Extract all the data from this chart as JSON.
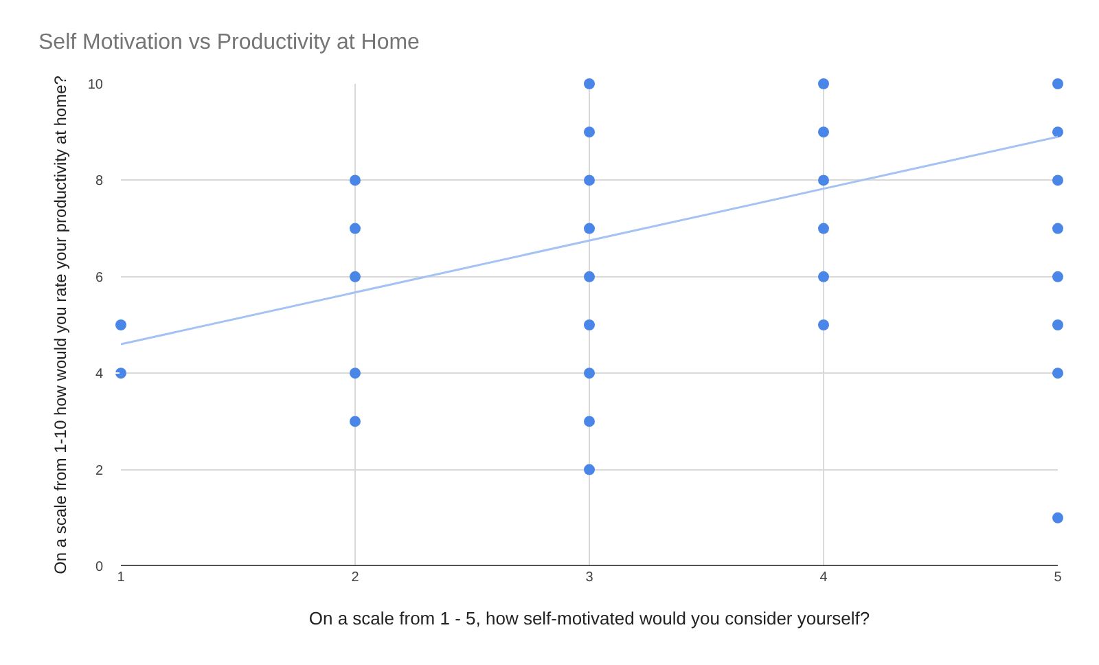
{
  "chart_data": {
    "type": "scatter",
    "title": "Self Motivation vs Productivity at Home",
    "xlabel": "On a scale from 1 - 5, how self-motivated would you consider yourself?",
    "ylabel": "On a scale from 1-10 how would you rate your productivity at home?",
    "series": [
      {
        "marker": "circle",
        "color": "#4a86e8",
        "x": [
          1,
          1,
          2,
          2,
          2,
          2,
          2,
          3,
          3,
          3,
          3,
          3,
          3,
          3,
          3,
          3,
          4,
          4,
          4,
          4,
          4,
          4,
          5,
          5,
          5,
          5,
          5,
          5,
          5,
          5
        ],
        "values": [
          5,
          4,
          8,
          7,
          6,
          4,
          3,
          10,
          9,
          8,
          7,
          6,
          5,
          4,
          3,
          2,
          10,
          9,
          8,
          7,
          6,
          5,
          10,
          9,
          8,
          7,
          6,
          5,
          4,
          1
        ]
      },
      {
        "type": "line",
        "marker": "none",
        "color": "#a4c2f4",
        "x": [
          1,
          5
        ],
        "values": [
          4.6,
          8.9
        ]
      }
    ],
    "xlim": [
      1,
      5
    ],
    "xticks": [
      1,
      2,
      3,
      4,
      5
    ],
    "ylim": [
      0,
      10
    ],
    "yticks": [
      0,
      2,
      4,
      6,
      8,
      10
    ],
    "grid": true,
    "line_style": "solid"
  }
}
